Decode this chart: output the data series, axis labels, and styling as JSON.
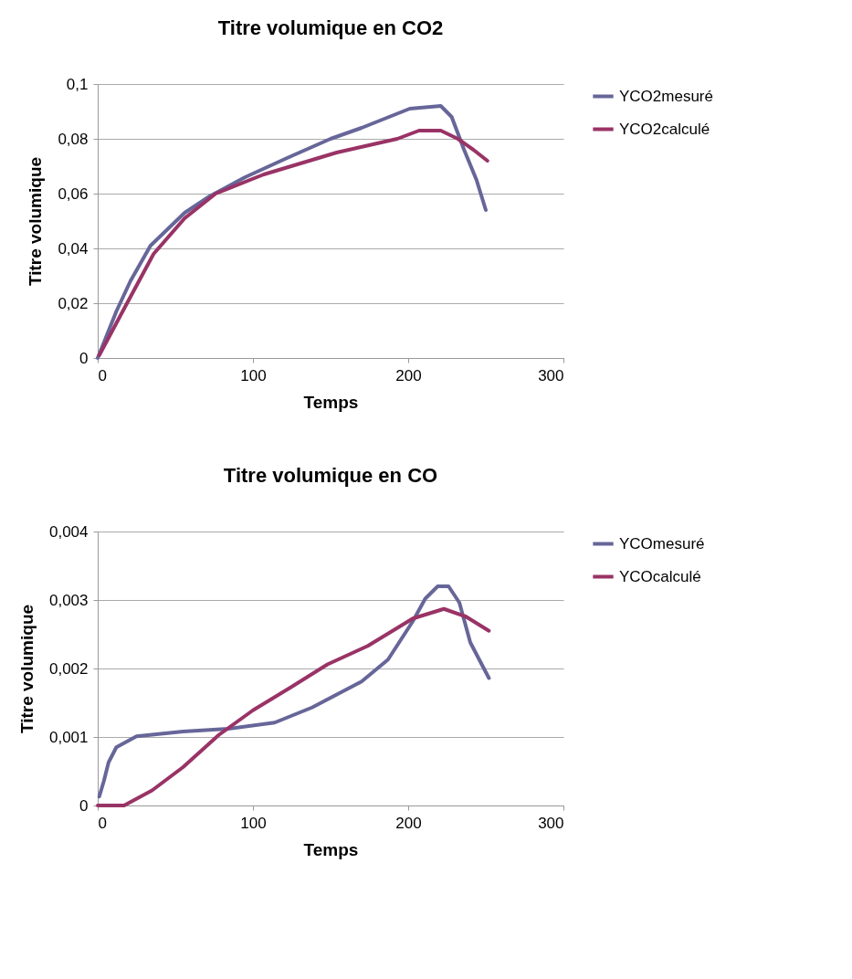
{
  "chart_data": [
    {
      "type": "line",
      "title": "Titre volumique en CO2",
      "xlabel": "Temps",
      "ylabel": "Titre volumique",
      "xlim": [
        0,
        300
      ],
      "xticks": [
        0,
        100,
        200,
        300
      ],
      "ylim": [
        0,
        0.1
      ],
      "yticks": [
        0,
        {
          "value": 0.02,
          "label": "0,02"
        },
        {
          "value": 0.04,
          "label": "0,04"
        },
        {
          "value": 0.06,
          "label": "0,06"
        },
        {
          "value": 0.08,
          "label": "0,08"
        },
        {
          "value": 0.1,
          "label": "0,1"
        }
      ],
      "grid": "y",
      "legend": "right",
      "series": [
        {
          "name": "YCO2mesuré",
          "color": "#666699",
          "x": [
            0,
            12,
            21,
            34,
            56,
            72,
            95,
            122,
            150,
            170,
            201,
            221,
            228,
            236,
            244,
            250
          ],
          "values": [
            0,
            0.017,
            0.028,
            0.041,
            0.053,
            0.059,
            0.066,
            0.073,
            0.08,
            0.084,
            0.091,
            0.092,
            0.088,
            0.076,
            0.065,
            0.054
          ]
        },
        {
          "name": "YCO2calculé",
          "color": "#993366",
          "x": [
            1,
            17,
            36,
            56,
            76,
            107,
            154,
            193,
            207,
            221,
            232,
            242,
            251
          ],
          "values": [
            0.001,
            0.018,
            0.038,
            0.051,
            0.06,
            0.067,
            0.075,
            0.08,
            0.083,
            0.083,
            0.08,
            0.076,
            0.072
          ]
        }
      ]
    },
    {
      "type": "line",
      "title": "Titre volumique en CO",
      "xlabel": "Temps",
      "ylabel": "Titre volumique",
      "xlim": [
        0,
        300
      ],
      "xticks": [
        0,
        100,
        200,
        300
      ],
      "ylim": [
        0,
        0.004
      ],
      "yticks": [
        0,
        {
          "value": 0.001,
          "label": "0,001"
        },
        {
          "value": 0.002,
          "label": "0,002"
        },
        {
          "value": 0.003,
          "label": "0,003"
        },
        {
          "value": 0.004,
          "label": "0,004"
        }
      ],
      "grid": "y",
      "legend": "right",
      "series": [
        {
          "name": "YCOmesuré",
          "color": "#666699",
          "x": [
            1,
            4,
            7,
            12,
            25,
            55,
            84,
            114,
            138,
            170,
            187,
            203,
            211,
            219,
            226,
            233,
            240,
            252
          ],
          "values": [
            0.00013,
            0.00036,
            0.00063,
            0.00085,
            0.00101,
            0.00108,
            0.00112,
            0.00121,
            0.00143,
            0.00181,
            0.00213,
            0.00269,
            0.00302,
            0.0032,
            0.0032,
            0.00296,
            0.00238,
            0.00186
          ]
        },
        {
          "name": "YCOcalculé",
          "color": "#993366",
          "x": [
            0,
            17,
            35,
            55,
            78,
            100,
            124,
            148,
            174,
            203,
            223,
            237,
            252
          ],
          "values": [
            0,
            0,
            0.00022,
            0.00056,
            0.00103,
            0.00139,
            0.00172,
            0.00206,
            0.00233,
            0.00273,
            0.00287,
            0.00276,
            0.00255
          ]
        }
      ]
    }
  ]
}
